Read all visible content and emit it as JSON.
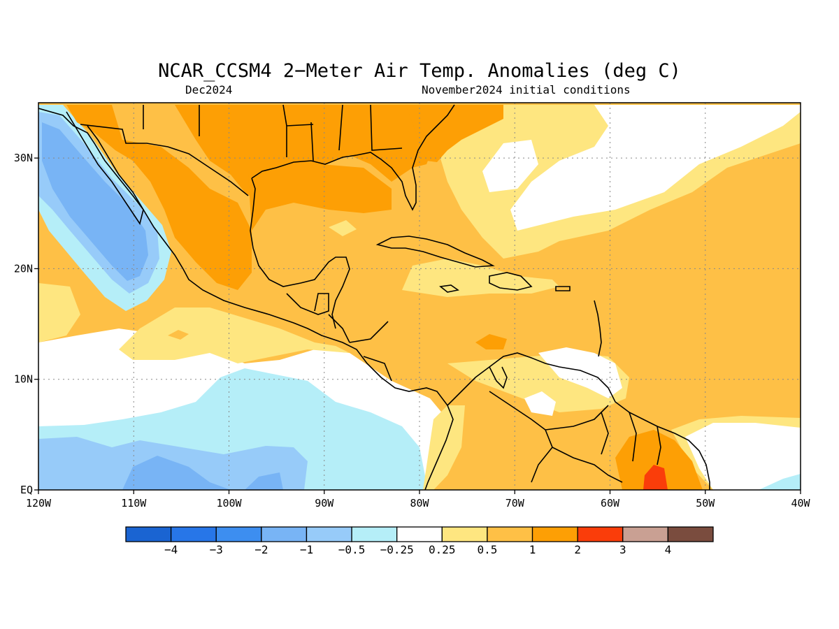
{
  "title": "NCAR_CCSM4 2−Meter Air Temp. Anomalies (deg C)",
  "subtitle_left": "Dec2024",
  "subtitle_right": "November2024 initial conditions",
  "map": {
    "lon_range": [
      -120,
      -40
    ],
    "lat_range": [
      0,
      35
    ],
    "lon_ticks": [
      {
        "lon": -120,
        "label": "120W"
      },
      {
        "lon": -110,
        "label": "110W"
      },
      {
        "lon": -100,
        "label": "100W"
      },
      {
        "lon": -90,
        "label": "90W"
      },
      {
        "lon": -80,
        "label": "80W"
      },
      {
        "lon": -70,
        "label": "70W"
      },
      {
        "lon": -60,
        "label": "60W"
      },
      {
        "lon": -50,
        "label": "50W"
      },
      {
        "lon": -40,
        "label": "40W"
      }
    ],
    "lat_ticks": [
      {
        "lat": 0,
        "label": "EQ"
      },
      {
        "lat": 10,
        "label": "10N"
      },
      {
        "lat": 20,
        "label": "20N"
      },
      {
        "lat": 30,
        "label": "30N"
      }
    ],
    "grid": true
  },
  "colorbar": {
    "colors": [
      "#1a64d2",
      "#2776e8",
      "#3d8ef0",
      "#78b4f5",
      "#97cbf9",
      "#b5eef8",
      "#ffffff",
      "#fee680",
      "#fec046",
      "#fd9f05",
      "#fa3d0a",
      "#c9a093",
      "#7a4c3e"
    ],
    "labels": [
      "−4",
      "−3",
      "−2",
      "−1",
      "−0.5",
      "−0.25",
      "0.25",
      "0.5",
      "1",
      "2",
      "3",
      "4"
    ]
  }
}
